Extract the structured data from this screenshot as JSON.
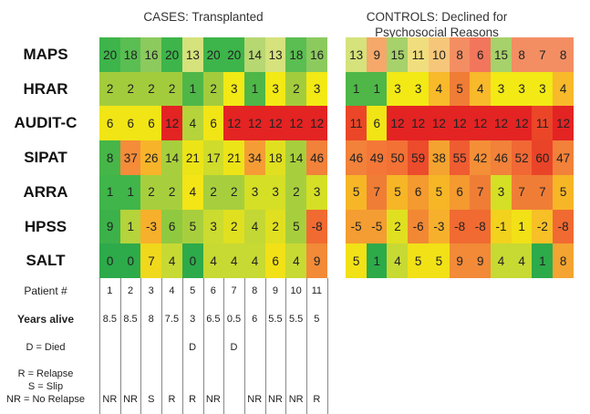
{
  "chart_data": {
    "type": "heatmap",
    "panels": [
      {
        "title": "CASES: Transplanted",
        "values": [
          [
            20,
            18,
            16,
            20,
            13,
            20,
            20,
            14,
            13,
            18,
            16
          ],
          [
            2,
            2,
            2,
            2,
            1,
            2,
            3,
            1,
            3,
            2,
            3
          ],
          [
            6,
            6,
            6,
            12,
            4,
            6,
            12,
            12,
            12,
            12,
            12
          ],
          [
            8,
            37,
            26,
            14,
            21,
            17,
            21,
            34,
            18,
            14,
            46
          ],
          [
            1,
            1,
            2,
            2,
            4,
            2,
            2,
            3,
            3,
            2,
            3
          ],
          [
            9,
            1,
            -3,
            6,
            5,
            3,
            2,
            4,
            2,
            5,
            -8
          ],
          [
            0,
            0,
            7,
            4,
            0,
            4,
            4,
            4,
            6,
            4,
            9
          ]
        ],
        "colors": [
          [
            "#3db54a",
            "#5abe52",
            "#8cca5e",
            "#3db54a",
            "#d6e27c",
            "#3db54a",
            "#3db54a",
            "#b7d772",
            "#d6e27c",
            "#5abe52",
            "#8cca5e"
          ],
          [
            "#a3cc3c",
            "#a3cc3c",
            "#a3cc3c",
            "#a3cc3c",
            "#4eb748",
            "#a3cc3c",
            "#f2e915",
            "#4eb748",
            "#f2e915",
            "#a3cc3c",
            "#f2e915"
          ],
          [
            "#f1e515",
            "#f1e515",
            "#f1e515",
            "#e42323",
            "#b5d33a",
            "#f1e515",
            "#e42323",
            "#e42323",
            "#e42323",
            "#e42323",
            "#e42323"
          ],
          [
            "#46b649",
            "#f48c3a",
            "#f7b42a",
            "#a7cf3d",
            "#ede418",
            "#cfdc2b",
            "#ede418",
            "#f59d34",
            "#e0e020",
            "#a7cf3d",
            "#f2813a"
          ],
          [
            "#3fb54a",
            "#3fb54a",
            "#a7cf3d",
            "#a7cf3d",
            "#f3e516",
            "#a7cf3d",
            "#a7cf3d",
            "#d5df25",
            "#d5df25",
            "#a7cf3d",
            "#d5df25"
          ],
          [
            "#3cb14a",
            "#b5d33a",
            "#f7b02c",
            "#8fc93f",
            "#a7cf3d",
            "#cbdb2f",
            "#e0e020",
            "#c3d835",
            "#e0e020",
            "#a7cf3d",
            "#f16a32"
          ],
          [
            "#2daa4a",
            "#2daa4a",
            "#f0d81c",
            "#c7d933",
            "#2daa4a",
            "#c7d933",
            "#c7d933",
            "#c7d933",
            "#f1e116",
            "#c7d933",
            "#f28a37"
          ]
        ],
        "patients": [
          "1",
          "2",
          "3",
          "4",
          "5",
          "6",
          "7",
          "8",
          "9",
          "10",
          "11"
        ],
        "years_alive": [
          "8.5",
          "8.5",
          "8",
          "7.5",
          "3",
          "6.5",
          "0.5",
          "6",
          "5.5",
          "5.5",
          "5"
        ],
        "died": [
          "",
          "",
          "",
          "",
          "D",
          "",
          "D",
          "",
          "",
          "",
          ""
        ],
        "outcome": [
          "NR",
          "NR",
          "S",
          "R",
          "R",
          "NR",
          "",
          "NR",
          "NR",
          "NR",
          "R"
        ]
      },
      {
        "title": "CONTROLS: Declined for Psychosocial Reasons",
        "values": [
          [
            13,
            9,
            15,
            11,
            10,
            8,
            6,
            15,
            8,
            7,
            8
          ],
          [
            1,
            1,
            3,
            3,
            4,
            5,
            4,
            3,
            3,
            3,
            4
          ],
          [
            11,
            6,
            12,
            12,
            12,
            12,
            12,
            12,
            12,
            11,
            12
          ],
          [
            46,
            49,
            50,
            59,
            38,
            55,
            42,
            46,
            52,
            60,
            47
          ],
          [
            5,
            7,
            5,
            6,
            5,
            6,
            7,
            3,
            7,
            7,
            5
          ],
          [
            -5,
            -5,
            2,
            -6,
            -3,
            -8,
            -8,
            -1,
            1,
            -2,
            -8
          ],
          [
            5,
            1,
            4,
            5,
            5,
            9,
            9,
            4,
            4,
            1,
            8
          ]
        ],
        "colors": [
          [
            "#d6e27c",
            "#f5a86a",
            "#a7d16a",
            "#f0de7e",
            "#f6c77a",
            "#f38e63",
            "#f2765b",
            "#a7d16a",
            "#f38e63",
            "#f38e63",
            "#f38e63"
          ],
          [
            "#4eb748",
            "#4eb748",
            "#f2e915",
            "#f2e915",
            "#f8b92b",
            "#f07d36",
            "#f8b92b",
            "#f2e915",
            "#f2e915",
            "#f2e915",
            "#f8b92b"
          ],
          [
            "#eb4627",
            "#f1e515",
            "#e42323",
            "#e42323",
            "#e42323",
            "#e42323",
            "#e42323",
            "#e42323",
            "#e42323",
            "#eb4627",
            "#e42323"
          ],
          [
            "#f2813a",
            "#f47738",
            "#f37135",
            "#ec4b2c",
            "#f4a330",
            "#ef5c31",
            "#f48f37",
            "#f2813a",
            "#f16834",
            "#ea4428",
            "#f2813a"
          ],
          [
            "#f6b626",
            "#f07d36",
            "#f6b626",
            "#f49a2f",
            "#f6b626",
            "#f49a2f",
            "#f07d36",
            "#d5df25",
            "#f07d36",
            "#f07d36",
            "#f6b626"
          ],
          [
            "#f49d32",
            "#f49d32",
            "#e0e020",
            "#f28834",
            "#f7b02c",
            "#f16a32",
            "#f16a32",
            "#f2d21d",
            "#f1e116",
            "#f6c026",
            "#f16a32"
          ],
          [
            "#f1e116",
            "#2daa4a",
            "#c7d933",
            "#f1e116",
            "#f1e116",
            "#f28a37",
            "#f28a37",
            "#c7d933",
            "#c7d933",
            "#2daa4a",
            "#f4a431"
          ]
        ]
      }
    ],
    "row_labels": [
      "MAPS",
      "HRAR",
      "AUDIT-C",
      "SIPAT",
      "ARRA",
      "HPSS",
      "SALT"
    ]
  },
  "legend": {
    "patient": "Patient #",
    "years_alive": "Years alive",
    "died": "D = Died",
    "outcome_lines": [
      "R = Relapse",
      "S = Slip",
      "NR = No Relapse"
    ]
  }
}
